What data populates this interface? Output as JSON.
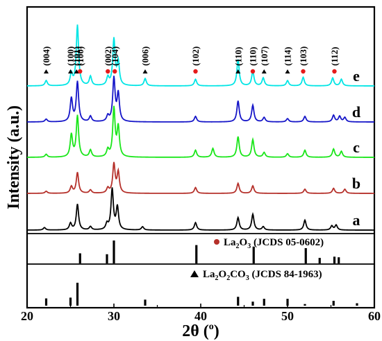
{
  "chart_data": {
    "type": "line",
    "xlabel": "2θ (°)",
    "xlabel_main": "2θ",
    "xlabel_unit": "(",
    "xlabel_unit_sup": "o",
    "xlabel_unit_close": ")",
    "ylabel": "Intensity (a.u.)",
    "xlim": [
      20,
      60
    ],
    "x_ticks": [
      "20",
      "30",
      "40",
      "50",
      "60"
    ],
    "colors": {
      "e": "#00e5e5",
      "d": "#1515c8",
      "c": "#19e619",
      "b": "#b5302a",
      "a": "#000000",
      "circle_marker": "#e61a1a",
      "triangle_marker": "#000000"
    },
    "series": [
      {
        "name": "e",
        "peaks": [
          [
            22.2,
            0.08
          ],
          [
            25.1,
            0.18
          ],
          [
            25.8,
            0.92
          ],
          [
            27.3,
            0.14
          ],
          [
            29.3,
            0.12
          ],
          [
            30.0,
            0.7
          ],
          [
            30.5,
            0.35
          ],
          [
            33.6,
            0.11
          ],
          [
            39.4,
            0.1
          ],
          [
            44.3,
            0.4
          ],
          [
            46.0,
            0.22
          ],
          [
            47.2,
            0.12
          ],
          [
            50.0,
            0.08
          ],
          [
            51.8,
            0.13
          ],
          [
            55.2,
            0.12
          ],
          [
            56.2,
            0.1
          ]
        ]
      },
      {
        "name": "d",
        "peaks": [
          [
            22.2,
            0.05
          ],
          [
            25.1,
            0.42
          ],
          [
            25.8,
            0.72
          ],
          [
            27.3,
            0.1
          ],
          [
            29.3,
            0.1
          ],
          [
            30.0,
            0.78
          ],
          [
            30.5,
            0.5
          ],
          [
            39.4,
            0.1
          ],
          [
            44.3,
            0.38
          ],
          [
            46.0,
            0.3
          ],
          [
            47.3,
            0.08
          ],
          [
            50.0,
            0.06
          ],
          [
            52.0,
            0.1
          ],
          [
            55.3,
            0.12
          ],
          [
            56.0,
            0.1
          ],
          [
            56.6,
            0.08
          ]
        ]
      },
      {
        "name": "c",
        "peaks": [
          [
            22.2,
            0.05
          ],
          [
            25.1,
            0.38
          ],
          [
            25.8,
            0.7
          ],
          [
            27.3,
            0.12
          ],
          [
            29.3,
            0.12
          ],
          [
            30.0,
            0.82
          ],
          [
            30.5,
            0.5
          ],
          [
            39.4,
            0.12
          ],
          [
            41.4,
            0.15
          ],
          [
            44.3,
            0.35
          ],
          [
            46.0,
            0.3
          ],
          [
            47.3,
            0.08
          ],
          [
            50.0,
            0.06
          ],
          [
            52.0,
            0.12
          ],
          [
            55.3,
            0.14
          ],
          [
            56.2,
            0.1
          ]
        ]
      },
      {
        "name": "b",
        "peaks": [
          [
            22.2,
            0.05
          ],
          [
            25.1,
            0.16
          ],
          [
            25.8,
            0.5
          ],
          [
            27.3,
            0.08
          ],
          [
            29.3,
            0.12
          ],
          [
            30.0,
            0.7
          ],
          [
            30.5,
            0.5
          ],
          [
            39.4,
            0.14
          ],
          [
            44.3,
            0.24
          ],
          [
            46.0,
            0.18
          ],
          [
            52.0,
            0.1
          ],
          [
            55.3,
            0.12
          ],
          [
            56.6,
            0.1
          ]
        ]
      },
      {
        "name": "a",
        "peaks": [
          [
            22.0,
            0.06
          ],
          [
            25.0,
            0.16
          ],
          [
            25.8,
            0.62
          ],
          [
            27.3,
            0.08
          ],
          [
            29.2,
            0.14
          ],
          [
            29.8,
            0.98
          ],
          [
            30.4,
            0.55
          ],
          [
            33.3,
            0.08
          ],
          [
            39.4,
            0.18
          ],
          [
            44.3,
            0.3
          ],
          [
            46.0,
            0.38
          ],
          [
            47.2,
            0.08
          ],
          [
            52.0,
            0.24
          ],
          [
            55.1,
            0.1
          ],
          [
            55.6,
            0.12
          ]
        ]
      }
    ],
    "reference_patterns": [
      {
        "name": "La2O3 (JCDS 05-0602)",
        "formula_main": "La",
        "formula_sub1": "2",
        "formula_mid": "O",
        "formula_sub2": "3",
        "formula_rest": " (JCDS 05-0602)",
        "marker": "circle",
        "lines": [
          [
            26.1,
            0.33
          ],
          [
            29.2,
            0.3
          ],
          [
            30.0,
            0.75
          ],
          [
            39.5,
            0.6
          ],
          [
            46.1,
            0.55
          ],
          [
            52.1,
            0.5
          ],
          [
            53.7,
            0.18
          ],
          [
            55.4,
            0.22
          ],
          [
            55.9,
            0.2
          ]
        ]
      },
      {
        "name": "La2O2CO3 (JCDS 84-1963)",
        "formula_main": "La",
        "formula_sub1": "2",
        "formula_mid": "O",
        "formula_sub2": "2",
        "formula_mid2": "CO",
        "formula_sub3": "3",
        "formula_rest": " (JCDS 84-1963)",
        "marker": "triangle",
        "lines": [
          [
            22.2,
            0.18
          ],
          [
            25.0,
            0.2
          ],
          [
            25.8,
            0.57
          ],
          [
            33.6,
            0.15
          ],
          [
            44.3,
            0.22
          ],
          [
            46.0,
            0.1
          ],
          [
            47.3,
            0.17
          ],
          [
            50.0,
            0.17
          ],
          [
            52.0,
            0.04
          ],
          [
            55.3,
            0.12
          ],
          [
            58.0,
            0.06
          ]
        ]
      }
    ],
    "annotations": [
      {
        "text": "(004)",
        "x": 22.2,
        "marker": "triangle"
      },
      {
        "text": "(100)",
        "x": 25.0,
        "marker": "triangle"
      },
      {
        "text": "(101)",
        "x": 25.7,
        "marker": "triangle"
      },
      {
        "text": "(100)",
        "x": 26.1,
        "marker": "circle"
      },
      {
        "text": "(002)",
        "x": 29.3,
        "marker": "circle"
      },
      {
        "text": "(104)",
        "x": 30.1,
        "marker": "circle"
      },
      {
        "text": "(006)",
        "x": 33.6,
        "marker": "triangle"
      },
      {
        "text": "(102)",
        "x": 39.4,
        "marker": "circle"
      },
      {
        "text": "(110)",
        "x": 44.3,
        "marker": "triangle"
      },
      {
        "text": "(110)",
        "x": 46.0,
        "marker": "circle"
      },
      {
        "text": "(107)",
        "x": 47.3,
        "marker": "triangle"
      },
      {
        "text": "(114)",
        "x": 50.0,
        "marker": "triangle"
      },
      {
        "text": "(103)",
        "x": 51.8,
        "marker": "circle"
      },
      {
        "text": "(112)",
        "x": 55.4,
        "marker": "circle"
      }
    ]
  }
}
